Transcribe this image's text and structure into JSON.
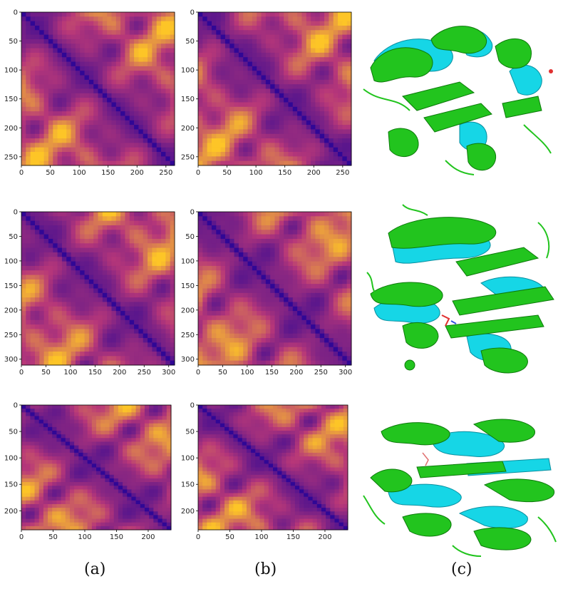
{
  "figure": {
    "captions": [
      "(a)",
      "(b)",
      "(c)"
    ]
  },
  "colors": {
    "low": "#2a0596",
    "mid": "#b73779",
    "high": "#fdc527",
    "green_cartoon": "#22c41e",
    "cyan_cartoon": "#16d6e6"
  },
  "chart_data": [
    {
      "type": "heatmap",
      "column": "a",
      "row": 1,
      "size": 265,
      "x_ticks": [
        0,
        50,
        100,
        150,
        200,
        250
      ],
      "y_ticks": [
        0,
        50,
        100,
        150,
        200,
        250
      ],
      "colormap": "plasma"
    },
    {
      "type": "heatmap",
      "column": "b",
      "row": 1,
      "size": 265,
      "x_ticks": [
        0,
        50,
        100,
        150,
        200,
        250
      ],
      "y_ticks": [
        0,
        50,
        100,
        150,
        200,
        250
      ],
      "colormap": "plasma"
    },
    {
      "type": "heatmap",
      "column": "a",
      "row": 2,
      "size": 312,
      "x_ticks": [
        0,
        50,
        100,
        150,
        200,
        250,
        300
      ],
      "y_ticks": [
        0,
        50,
        100,
        150,
        200,
        250,
        300
      ],
      "colormap": "plasma"
    },
    {
      "type": "heatmap",
      "column": "b",
      "row": 2,
      "size": 312,
      "x_ticks": [
        0,
        50,
        100,
        150,
        200,
        250,
        300
      ],
      "y_ticks": [
        0,
        50,
        100,
        150,
        200,
        250,
        300
      ],
      "colormap": "plasma"
    },
    {
      "type": "heatmap",
      "column": "a",
      "row": 3,
      "size": 236,
      "x_ticks": [
        0,
        50,
        100,
        150,
        200
      ],
      "y_ticks": [
        0,
        50,
        100,
        150,
        200
      ],
      "colormap": "plasma"
    },
    {
      "type": "heatmap",
      "column": "b",
      "row": 3,
      "size": 236,
      "x_ticks": [
        0,
        50,
        100,
        150,
        200
      ],
      "y_ticks": [
        0,
        50,
        100,
        150,
        200
      ],
      "colormap": "plasma"
    }
  ],
  "structures": [
    {
      "row": 1,
      "colors": [
        "green_cartoon",
        "cyan_cartoon"
      ]
    },
    {
      "row": 2,
      "colors": [
        "green_cartoon",
        "cyan_cartoon"
      ]
    },
    {
      "row": 3,
      "colors": [
        "green_cartoon",
        "cyan_cartoon"
      ]
    }
  ]
}
